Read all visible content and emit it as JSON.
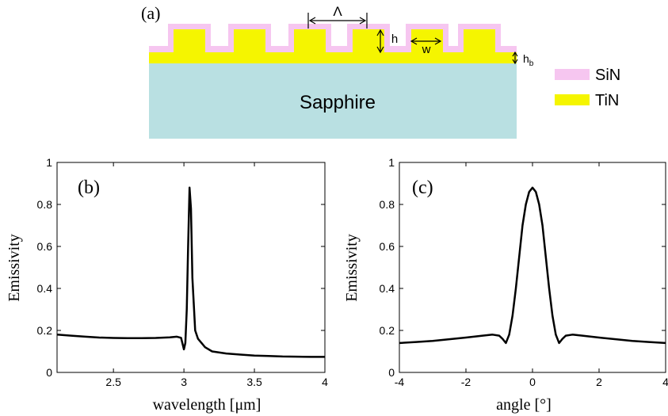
{
  "diagram": {
    "panel_label": "(a)",
    "substrate_label": "Sapphire",
    "dim_period": "Λ",
    "dim_height": "h",
    "dim_width": "w",
    "dim_base_main": "h",
    "dim_base_sub": "b",
    "legend": [
      {
        "label": "SiN",
        "color": "#f6c6f0"
      },
      {
        "label": "TiN",
        "color": "#f5f500"
      }
    ],
    "colors": {
      "sapphire": "#b9e0e2",
      "tin": "#f5f500",
      "sin": "#f6c6f0"
    }
  },
  "chart_data": [
    {
      "type": "line",
      "panel_label": "(b)",
      "xlabel": "wavelength [μm]",
      "ylabel": "Emissivity",
      "xlim": [
        2.1,
        4.0
      ],
      "ylim": [
        0,
        1
      ],
      "xticks": [
        2.5,
        3,
        3.5,
        4
      ],
      "xtick_labels": [
        "2.5",
        "3",
        "3.5",
        "4"
      ],
      "yticks": [
        0,
        0.2,
        0.4,
        0.6,
        0.8,
        1
      ],
      "ytick_labels": [
        "0",
        "0.2",
        "0.4",
        "0.6",
        "0.8",
        "1"
      ],
      "grid": false,
      "series": [
        {
          "color": "#000000",
          "x": [
            2.1,
            2.2,
            2.3,
            2.4,
            2.5,
            2.6,
            2.7,
            2.8,
            2.9,
            2.95,
            2.98,
            3.0,
            3.01,
            3.02,
            3.03,
            3.04,
            3.05,
            3.06,
            3.08,
            3.1,
            3.15,
            3.2,
            3.3,
            3.4,
            3.5,
            3.6,
            3.7,
            3.8,
            3.9,
            4.0
          ],
          "y": [
            0.18,
            0.175,
            0.17,
            0.166,
            0.164,
            0.163,
            0.163,
            0.164,
            0.167,
            0.17,
            0.165,
            0.11,
            0.14,
            0.3,
            0.6,
            0.88,
            0.78,
            0.45,
            0.2,
            0.16,
            0.12,
            0.1,
            0.09,
            0.085,
            0.08,
            0.078,
            0.076,
            0.075,
            0.074,
            0.074
          ]
        }
      ]
    },
    {
      "type": "line",
      "panel_label": "(c)",
      "xlabel": "angle [°]",
      "ylabel": "Emissivity",
      "xlim": [
        -4,
        4
      ],
      "ylim": [
        0,
        1
      ],
      "xticks": [
        -4,
        -2,
        0,
        2,
        4
      ],
      "xtick_labels": [
        "-4",
        "-2",
        "0",
        "2",
        "4"
      ],
      "yticks": [
        0,
        0.2,
        0.4,
        0.6,
        0.8,
        1
      ],
      "ytick_labels": [
        "0",
        "0.2",
        "0.4",
        "0.6",
        "0.8",
        "1"
      ],
      "grid": false,
      "series": [
        {
          "color": "#000000",
          "x": [
            -4,
            -3.5,
            -3,
            -2.5,
            -2,
            -1.5,
            -1.2,
            -1.0,
            -0.9,
            -0.8,
            -0.7,
            -0.6,
            -0.5,
            -0.4,
            -0.3,
            -0.2,
            -0.1,
            0,
            0.1,
            0.2,
            0.3,
            0.4,
            0.5,
            0.6,
            0.7,
            0.8,
            0.9,
            1.0,
            1.2,
            1.5,
            2,
            2.5,
            3,
            3.5,
            4
          ],
          "y": [
            0.14,
            0.145,
            0.15,
            0.158,
            0.166,
            0.175,
            0.18,
            0.175,
            0.16,
            0.14,
            0.18,
            0.27,
            0.4,
            0.55,
            0.7,
            0.8,
            0.86,
            0.88,
            0.86,
            0.8,
            0.7,
            0.55,
            0.4,
            0.27,
            0.18,
            0.14,
            0.16,
            0.175,
            0.18,
            0.175,
            0.166,
            0.158,
            0.15,
            0.145,
            0.14
          ]
        }
      ]
    }
  ]
}
